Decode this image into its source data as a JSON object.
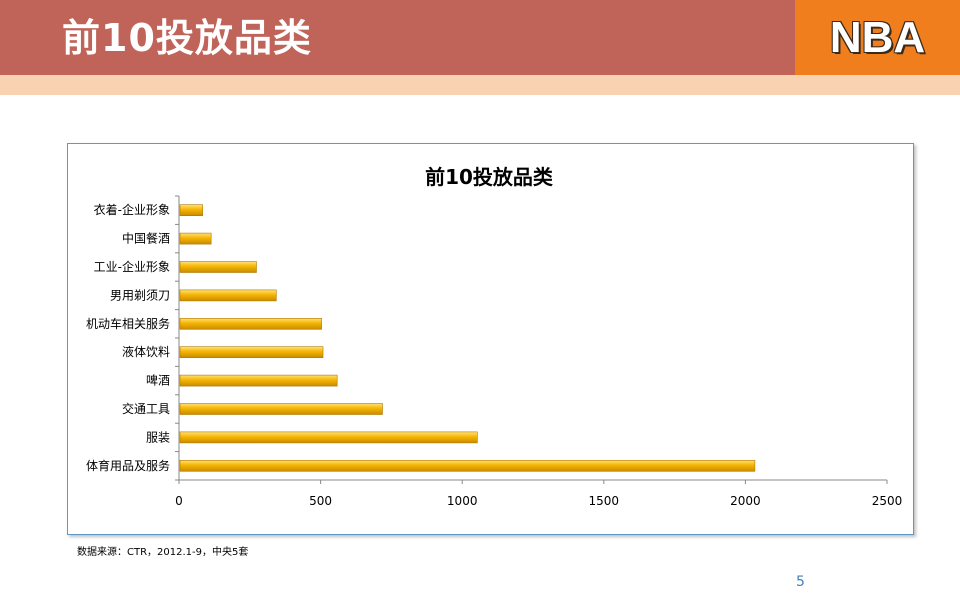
{
  "header": {
    "title": "前10投放品类"
  },
  "logo": {
    "text": "NBA"
  },
  "footer": {
    "source": "数据来源：CTR，2012.1-9，中央5套",
    "page_number": "5"
  },
  "colors": {
    "header": "#c0645a",
    "logo_bg": "#f07e1c",
    "stripe": "#f9d2b2",
    "bar": "#f2a900",
    "frame": "#5e9ac9"
  },
  "chart_data": {
    "type": "bar",
    "orientation": "horizontal",
    "title": "前10投放品类",
    "categories": [
      "衣着-企业形象",
      "中国餐酒",
      "工业-企业形象",
      "男用剃须刀",
      "机动车相关服务",
      "液体饮料",
      "啤酒",
      "交通工具",
      "服装",
      "体育用品及服务"
    ],
    "values": [
      80,
      110,
      270,
      340,
      500,
      505,
      555,
      715,
      1050,
      2030
    ],
    "xlim": [
      0,
      2500
    ],
    "xticks": [
      "0",
      "500",
      "1000",
      "1500",
      "2000",
      "2500"
    ],
    "xlabel": "",
    "ylabel": "",
    "grid": false,
    "legend": "none"
  }
}
